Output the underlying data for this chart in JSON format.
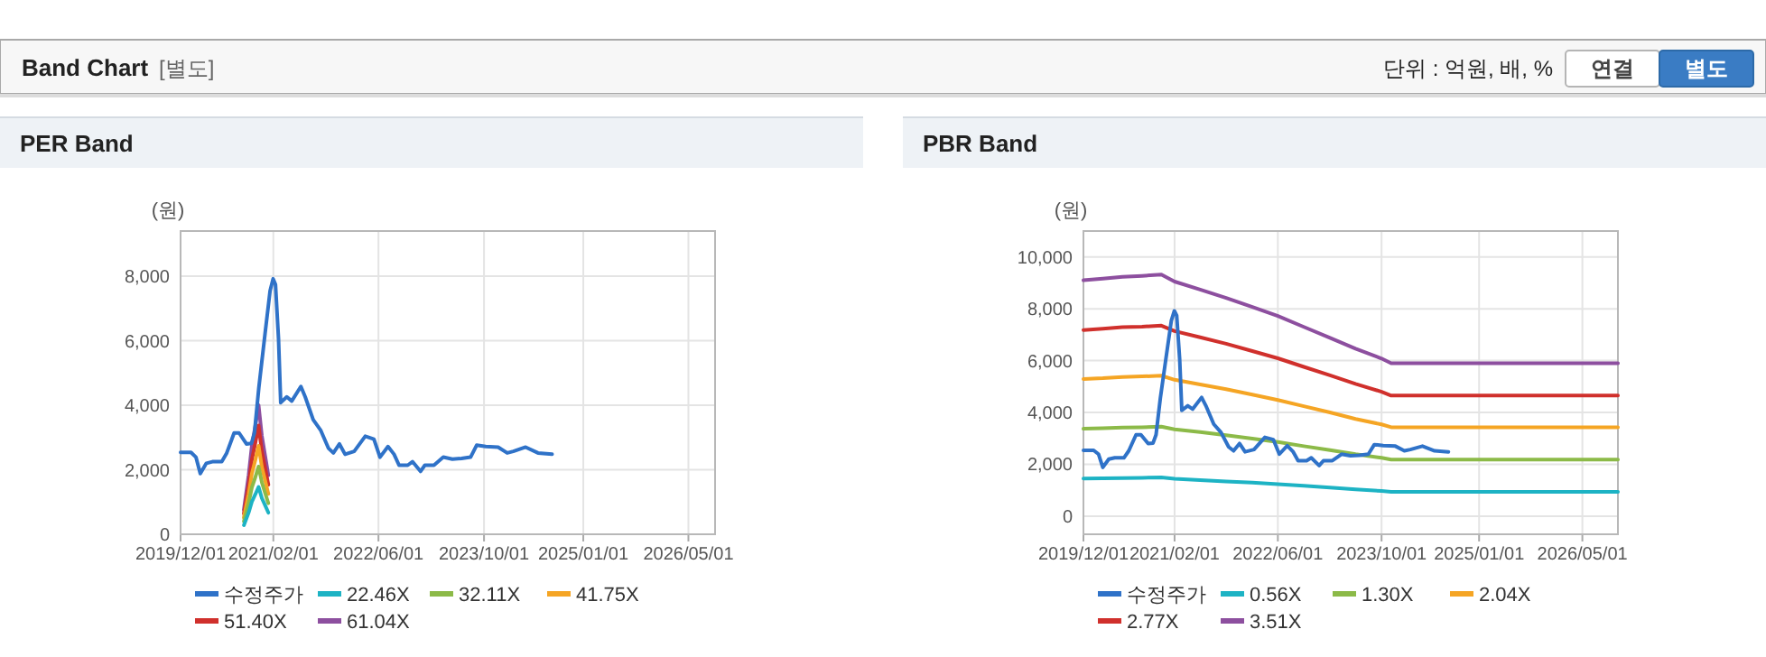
{
  "chart_data": [
    {
      "type": "other",
      "title": "Band Chart",
      "subtitle": "[별도]",
      "annotations": [
        "단위 : 억원, 배, %",
        "연결",
        "별도"
      ]
    },
    {
      "type": "line",
      "title": "PER Band",
      "ylabel": "(원)",
      "xlim": [
        "2019-12-01",
        "2026-09-01"
      ],
      "ylim": [
        0,
        9400
      ],
      "xticks": [
        {
          "value": "2019-12-01",
          "label": "2019/12/01"
        },
        {
          "value": "2021-02-01",
          "label": "2021/02/01"
        },
        {
          "value": "2022-06-01",
          "label": "2022/06/01"
        },
        {
          "value": "2023-10-01",
          "label": "2023/10/01"
        },
        {
          "value": "2025-01-01",
          "label": "2025/01/01"
        },
        {
          "value": "2026-05-01",
          "label": "2026/05/01"
        }
      ],
      "yticks": [
        0,
        {
          "value": 2000,
          "label": "2,000"
        },
        {
          "value": 4000,
          "label": "4,000"
        },
        {
          "value": 6000,
          "label": "6,000"
        },
        {
          "value": 8000,
          "label": "8,000"
        }
      ],
      "grid": true,
      "legend": "bottom",
      "series": [
        {
          "name": "수정주가",
          "color": "#2f72c8",
          "x": [
            "2019-12-01",
            "2020-01-18",
            "2020-02-10",
            "2020-03-01",
            "2020-03-29",
            "2020-04-26",
            "2020-06-08",
            "2020-07-01",
            "2020-08-04",
            "2020-08-27",
            "2020-09-30",
            "2020-10-23",
            "2020-11-06",
            "2020-11-26",
            "2020-12-25",
            "2021-01-17",
            "2021-01-31",
            "2021-02-11",
            "2021-02-25",
            "2021-03-07",
            "2021-04-04",
            "2021-04-27",
            "2021-06-08",
            "2021-06-28",
            "2021-08-04",
            "2021-09-07",
            "2021-10-13",
            "2021-11-05",
            "2021-12-03",
            "2021-12-29",
            "2022-02-09",
            "2022-04-01",
            "2022-05-11",
            "2022-06-08",
            "2022-07-15",
            "2022-08-12",
            "2022-09-04",
            "2022-10-14",
            "2022-11-05",
            "2022-12-12",
            "2023-01-01",
            "2023-02-12",
            "2023-03-27",
            "2023-05-08",
            "2023-06-19",
            "2023-07-31",
            "2023-08-28",
            "2023-10-09",
            "2023-12-05",
            "2024-01-16",
            "2024-02-13",
            "2024-04-10",
            "2024-06-06",
            "2024-08-10"
          ],
          "values": [
            2540,
            2540,
            2390,
            1880,
            2200,
            2250,
            2250,
            2520,
            3140,
            3140,
            2800,
            2820,
            3140,
            4540,
            6230,
            7550,
            7920,
            7740,
            6050,
            4080,
            4260,
            4130,
            4580,
            4260,
            3550,
            3230,
            2670,
            2520,
            2800,
            2480,
            2570,
            3040,
            2950,
            2390,
            2720,
            2480,
            2140,
            2140,
            2250,
            1950,
            2140,
            2140,
            2390,
            2330,
            2350,
            2390,
            2760,
            2720,
            2700,
            2520,
            2570,
            2700,
            2520,
            2480
          ]
        },
        {
          "name": "22.46X",
          "color": "#1db3c4",
          "x": [
            "2020-09-18",
            "2020-10-10",
            "2020-10-25",
            "2020-11-10",
            "2020-11-25",
            "2020-12-10",
            "2020-12-25",
            "2021-01-09"
          ],
          "values": [
            280,
            670,
            1010,
            1240,
            1470,
            1120,
            900,
            670
          ]
        },
        {
          "name": "32.11X",
          "color": "#8cba48",
          "x": [
            "2020-09-18",
            "2020-10-10",
            "2020-10-25",
            "2020-11-10",
            "2020-11-25",
            "2020-12-10",
            "2020-12-25",
            "2021-01-09"
          ],
          "values": [
            400,
            960,
            1450,
            1770,
            2100,
            1610,
            1280,
            960
          ]
        },
        {
          "name": "41.75X",
          "color": "#f5a524",
          "x": [
            "2020-09-18",
            "2020-10-10",
            "2020-10-25",
            "2020-11-10",
            "2020-11-25",
            "2020-12-10",
            "2020-12-25",
            "2021-01-09"
          ],
          "values": [
            520,
            1250,
            1880,
            2300,
            2740,
            2090,
            1670,
            1250
          ]
        },
        {
          "name": "51.40X",
          "color": "#d0302c",
          "x": [
            "2020-09-18",
            "2020-10-10",
            "2020-10-25",
            "2020-11-10",
            "2020-11-25",
            "2020-12-10",
            "2020-12-25",
            "2021-01-09"
          ],
          "values": [
            640,
            1540,
            2310,
            2830,
            3370,
            2570,
            2060,
            1540
          ]
        },
        {
          "name": "61.04X",
          "color": "#8d4f9f",
          "x": [
            "2020-09-18",
            "2020-10-10",
            "2020-10-25",
            "2020-11-10",
            "2020-11-25",
            "2020-12-10",
            "2020-12-25",
            "2021-01-09"
          ],
          "values": [
            760,
            1830,
            2750,
            3360,
            4000,
            3050,
            2440,
            1830
          ]
        }
      ]
    },
    {
      "type": "line",
      "title": "PBR Band",
      "ylabel": "(원)",
      "xlim": [
        "2019-12-01",
        "2026-10-15"
      ],
      "ylim": [
        -700,
        11000
      ],
      "xticks": [
        {
          "value": "2019-12-01",
          "label": "2019/12/01"
        },
        {
          "value": "2021-02-01",
          "label": "2021/02/01"
        },
        {
          "value": "2022-06-01",
          "label": "2022/06/01"
        },
        {
          "value": "2023-10-01",
          "label": "2023/10/01"
        },
        {
          "value": "2025-01-01",
          "label": "2025/01/01"
        },
        {
          "value": "2026-05-01",
          "label": "2026/05/01"
        }
      ],
      "yticks": [
        0,
        {
          "value": 2000,
          "label": "2,000"
        },
        {
          "value": 4000,
          "label": "4,000"
        },
        {
          "value": 6000,
          "label": "6,000"
        },
        {
          "value": 8000,
          "label": "8,000"
        },
        {
          "value": 10000,
          "label": "10,000"
        }
      ],
      "grid": true,
      "legend": "bottom",
      "series": [
        {
          "name": "수정주가",
          "color": "#2f72c8",
          "x": [
            "2019-12-01",
            "2020-01-18",
            "2020-02-10",
            "2020-03-01",
            "2020-03-29",
            "2020-04-26",
            "2020-06-08",
            "2020-07-01",
            "2020-08-04",
            "2020-08-27",
            "2020-09-30",
            "2020-10-23",
            "2020-11-06",
            "2020-11-26",
            "2020-12-25",
            "2021-01-17",
            "2021-01-31",
            "2021-02-11",
            "2021-02-25",
            "2021-03-07",
            "2021-04-04",
            "2021-04-27",
            "2021-06-08",
            "2021-06-28",
            "2021-08-04",
            "2021-09-07",
            "2021-10-13",
            "2021-11-05",
            "2021-12-03",
            "2021-12-29",
            "2022-02-09",
            "2022-04-01",
            "2022-05-11",
            "2022-06-08",
            "2022-07-15",
            "2022-08-12",
            "2022-09-04",
            "2022-10-14",
            "2022-11-05",
            "2022-12-12",
            "2023-01-01",
            "2023-02-12",
            "2023-03-27",
            "2023-05-08",
            "2023-06-19",
            "2023-07-31",
            "2023-08-28",
            "2023-10-09",
            "2023-12-05",
            "2024-01-16",
            "2024-02-13",
            "2024-04-10",
            "2024-06-06",
            "2024-08-10"
          ],
          "values": [
            2540,
            2540,
            2390,
            1880,
            2200,
            2250,
            2250,
            2520,
            3140,
            3140,
            2800,
            2820,
            3140,
            4540,
            6230,
            7550,
            7920,
            7740,
            6050,
            4080,
            4260,
            4130,
            4580,
            4260,
            3550,
            3230,
            2670,
            2520,
            2800,
            2480,
            2570,
            3040,
            2950,
            2390,
            2720,
            2480,
            2140,
            2140,
            2250,
            1950,
            2140,
            2140,
            2390,
            2330,
            2350,
            2390,
            2760,
            2720,
            2700,
            2520,
            2570,
            2700,
            2520,
            2480
          ]
        },
        {
          "name": "0.56X",
          "color": "#1db3c4",
          "x": [
            "2019-12-01",
            "2020-03-01",
            "2020-06-01",
            "2020-09-01",
            "2020-12-01",
            "2021-02-01",
            "2021-06-01",
            "2021-10-01",
            "2022-02-01",
            "2022-06-01",
            "2022-10-01",
            "2023-02-01",
            "2023-06-01",
            "2023-10-01",
            "2023-11-15",
            "2026-10-15"
          ],
          "values": [
            1450,
            1460,
            1470,
            1480,
            1490,
            1440,
            1390,
            1340,
            1290,
            1230,
            1170,
            1100,
            1030,
            970,
            940,
            940
          ]
        },
        {
          "name": "1.30X",
          "color": "#8cba48",
          "x": [
            "2019-12-01",
            "2020-03-01",
            "2020-06-01",
            "2020-09-01",
            "2020-12-01",
            "2021-02-01",
            "2021-06-01",
            "2021-10-01",
            "2022-02-01",
            "2022-06-01",
            "2022-10-01",
            "2023-02-01",
            "2023-06-01",
            "2023-10-01",
            "2023-11-15",
            "2026-10-15"
          ],
          "values": [
            3370,
            3390,
            3420,
            3430,
            3450,
            3350,
            3240,
            3120,
            2990,
            2860,
            2700,
            2550,
            2390,
            2250,
            2180,
            2180
          ]
        },
        {
          "name": "2.04X",
          "color": "#f5a524",
          "x": [
            "2019-12-01",
            "2020-03-01",
            "2020-06-01",
            "2020-09-01",
            "2020-12-01",
            "2021-02-01",
            "2021-06-01",
            "2021-10-01",
            "2022-02-01",
            "2022-06-01",
            "2022-10-01",
            "2023-02-01",
            "2023-06-01",
            "2023-10-01",
            "2023-11-15",
            "2026-10-15"
          ],
          "values": [
            5290,
            5320,
            5370,
            5390,
            5420,
            5260,
            5080,
            4900,
            4690,
            4480,
            4240,
            4000,
            3750,
            3540,
            3430,
            3430
          ]
        },
        {
          "name": "2.77X",
          "color": "#d0302c",
          "x": [
            "2019-12-01",
            "2020-03-01",
            "2020-06-01",
            "2020-09-01",
            "2020-12-01",
            "2021-02-01",
            "2021-06-01",
            "2021-10-01",
            "2022-02-01",
            "2022-06-01",
            "2022-10-01",
            "2023-02-01",
            "2023-06-01",
            "2023-10-01",
            "2023-11-15",
            "2026-10-15"
          ],
          "values": [
            7180,
            7230,
            7290,
            7310,
            7350,
            7140,
            6900,
            6650,
            6370,
            6090,
            5760,
            5430,
            5100,
            4800,
            4650,
            4650
          ]
        },
        {
          "name": "3.51X",
          "color": "#8d4f9f",
          "x": [
            "2019-12-01",
            "2020-03-01",
            "2020-06-01",
            "2020-09-01",
            "2020-12-01",
            "2021-02-01",
            "2021-06-01",
            "2021-10-01",
            "2022-02-01",
            "2022-06-01",
            "2022-10-01",
            "2023-02-01",
            "2023-06-01",
            "2023-10-01",
            "2023-11-15",
            "2026-10-15"
          ],
          "values": [
            9100,
            9160,
            9230,
            9270,
            9320,
            9050,
            8740,
            8420,
            8070,
            7720,
            7300,
            6880,
            6460,
            6080,
            5900,
            5900
          ]
        }
      ]
    }
  ]
}
